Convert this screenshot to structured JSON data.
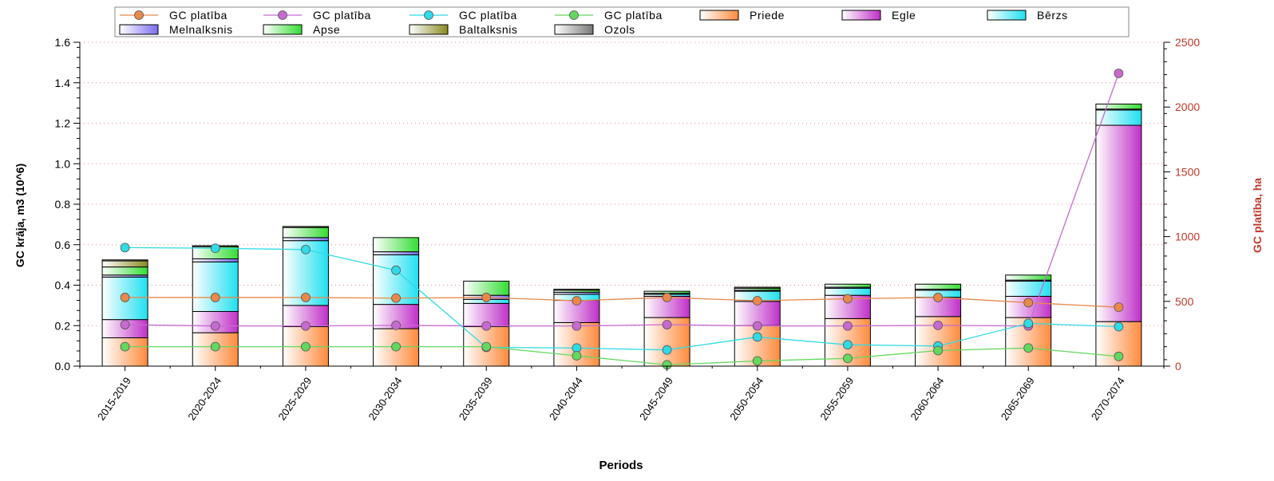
{
  "chart_data": {
    "type": "bar",
    "stacked": true,
    "xlabel": "Periods",
    "ylabel": "GC krāja, m3 (10^6)",
    "y2label": "GC platība, ha",
    "ylim": [
      0,
      1.6
    ],
    "y2lim": [
      0,
      2500
    ],
    "yticks": [
      "0.0",
      "0.2",
      "0.4",
      "0.6",
      "0.8",
      "1.0",
      "1.2",
      "1.4",
      "1.6"
    ],
    "y2ticks": [
      "0",
      "500",
      "1000",
      "1500",
      "2000",
      "2500"
    ],
    "grid": "horizontal dotted",
    "legend_position": "top",
    "categories": [
      "2015-2019",
      "2020-2024",
      "2025-2029",
      "2030-2034",
      "2035-2039",
      "2040-2044",
      "2045-2049",
      "2050-2054",
      "2055-2059",
      "2060-2064",
      "2065-2069",
      "2070-2074"
    ],
    "series": [
      {
        "name": "Priede",
        "color": "#ff8a3d",
        "values": [
          0.14,
          0.165,
          0.195,
          0.185,
          0.195,
          0.215,
          0.24,
          0.2,
          0.235,
          0.245,
          0.24,
          0.22
        ]
      },
      {
        "name": "Egle",
        "color": "#c030c8",
        "values": [
          0.09,
          0.105,
          0.105,
          0.12,
          0.115,
          0.11,
          0.105,
          0.12,
          0.115,
          0.095,
          0.105,
          0.97
        ]
      },
      {
        "name": "Bērzs",
        "color": "#20e0f0",
        "values": [
          0.21,
          0.245,
          0.32,
          0.245,
          0.02,
          0.03,
          0.01,
          0.05,
          0.035,
          0.035,
          0.075,
          0.075
        ]
      },
      {
        "name": "Melnalksnis",
        "color": "#7a6cf0",
        "values": [
          0.01,
          0.015,
          0.015,
          0.015,
          0.02,
          0.01,
          0.005,
          0.005,
          0.005,
          0.005,
          0.005,
          0.005
        ]
      },
      {
        "name": "Apse",
        "color": "#33dd33",
        "values": [
          0.04,
          0.06,
          0.05,
          0.07,
          0.07,
          0.01,
          0.01,
          0.01,
          0.015,
          0.025,
          0.025,
          0.025
        ]
      },
      {
        "name": "Baltalksnis",
        "color": "#8a8a20",
        "values": [
          0.03,
          0.005,
          0.005,
          0.0,
          0.0,
          0.005,
          0.0,
          0.005,
          0.0,
          0.0,
          0.0,
          0.0
        ]
      },
      {
        "name": "Ozols",
        "color": "#777777",
        "values": [
          0.005,
          0.0,
          0.0,
          0.0,
          0.0,
          0.0,
          0.0,
          0.0,
          0.0,
          0.0,
          0.0,
          0.0
        ]
      }
    ],
    "lines": [
      {
        "name": "GC platība",
        "color": "#e8894a",
        "values": [
          530,
          530,
          530,
          525,
          530,
          505,
          530,
          505,
          520,
          530,
          490,
          455
        ]
      },
      {
        "name": "GC platība",
        "color": "#c66ad0",
        "values": [
          320,
          310,
          310,
          315,
          310,
          310,
          320,
          310,
          310,
          315,
          310,
          2260
        ]
      },
      {
        "name": "GC platība",
        "color": "#2edbe6",
        "values": [
          915,
          910,
          900,
          740,
          145,
          140,
          125,
          225,
          165,
          155,
          330,
          305
        ]
      },
      {
        "name": "GC platība",
        "color": "#63d85e",
        "values": [
          150,
          150,
          150,
          150,
          150,
          80,
          10,
          40,
          60,
          120,
          140,
          75
        ]
      }
    ],
    "legend": [
      {
        "label": "GC platība",
        "kind": "line",
        "color": "#e8894a"
      },
      {
        "label": "GC platība",
        "kind": "line",
        "color": "#c66ad0"
      },
      {
        "label": "GC platība",
        "kind": "line",
        "color": "#2edbe6"
      },
      {
        "label": "GC platība",
        "kind": "line",
        "color": "#63d85e"
      },
      {
        "label": "Priede",
        "kind": "box",
        "color": "#ff8a3d"
      },
      {
        "label": "Egle",
        "kind": "box",
        "color": "#c030c8"
      },
      {
        "label": "Bērzs",
        "kind": "box",
        "color": "#20e0f0"
      },
      {
        "label": "Melnalksnis",
        "kind": "box",
        "color": "#7a6cf0"
      },
      {
        "label": "Apse",
        "kind": "box",
        "color": "#33dd33"
      },
      {
        "label": "Baltalksnis",
        "kind": "box",
        "color": "#8a8a20"
      },
      {
        "label": "Ozols",
        "kind": "box",
        "color": "#777777"
      }
    ]
  }
}
